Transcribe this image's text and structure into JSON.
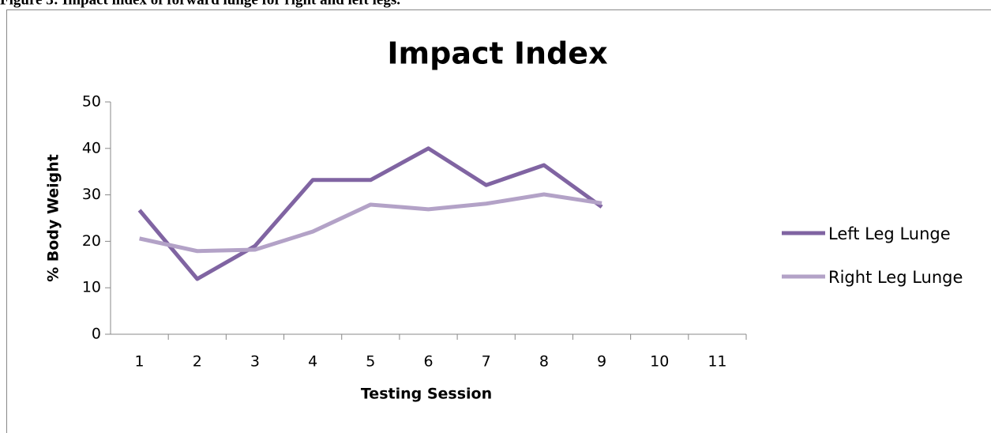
{
  "caption": "Figure 3: Impact index of forward lunge for right and left legs.",
  "chart_data": {
    "type": "line",
    "title": "Impact Index",
    "x_label": "Testing Session",
    "y_label": "% Body Weight",
    "categories": [
      "1",
      "2",
      "3",
      "4",
      "5",
      "6",
      "7",
      "8",
      "9",
      "10",
      "11"
    ],
    "series": [
      {
        "name": "Left Leg Lunge",
        "color": "#8064a2",
        "values": [
          26.7,
          11.9,
          19,
          33.2,
          33.2,
          40,
          32.1,
          36.4,
          27.4,
          null,
          null
        ]
      },
      {
        "name": "Right Leg Lunge",
        "color": "#b3a2c7",
        "values": [
          20.6,
          17.9,
          18.2,
          22.1,
          27.9,
          26.9,
          28.1,
          30.1,
          28.2,
          null,
          null
        ]
      }
    ],
    "ylim": [
      0,
      50
    ],
    "yticks": [
      0,
      10,
      20,
      30,
      40,
      50
    ],
    "grid": false,
    "legend": "right"
  }
}
